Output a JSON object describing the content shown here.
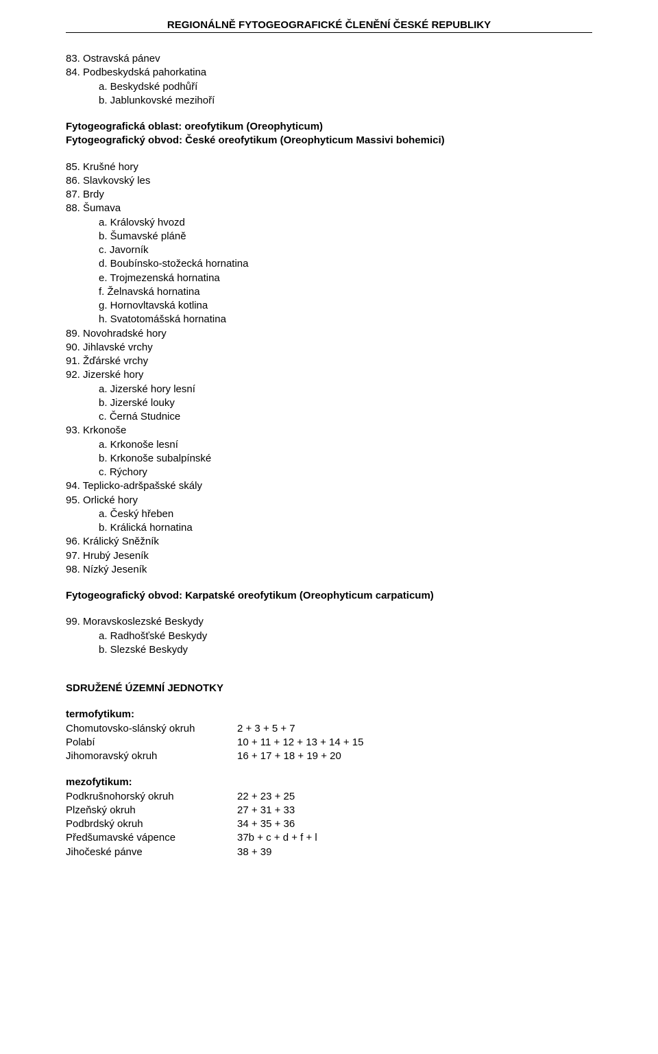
{
  "header": {
    "title": "REGIONÁLNĚ FYTOGEOGRAFICKÉ ČLENĚNÍ ČESKÉ REPUBLIKY"
  },
  "items": {
    "i83": "83. Ostravská pánev",
    "i84": "84. Podbeskydská pahorkatina",
    "i84a": "a. Beskydské podhůří",
    "i84b": "b. Jablunkovské mezihoří",
    "oblast1": "Fytogeografická oblast: oreofytikum (Oreophyticum)",
    "obvod1": "Fytogeografický obvod: České oreofytikum (Oreophyticum Massivi bohemici)",
    "i85": "85. Krušné hory",
    "i86": "86. Slavkovský les",
    "i87": "87. Brdy",
    "i88": "88. Šumava",
    "i88a": "a. Královský hvozd",
    "i88b": "b. Šumavské pláně",
    "i88c": "c. Javorník",
    "i88d": "d. Boubínsko-stožecká hornatina",
    "i88e": "e. Trojmezenská hornatina",
    "i88f": "f. Želnavská hornatina",
    "i88g": "g. Hornovltavská kotlina",
    "i88h": "h. Svatotomášská hornatina",
    "i89": "89. Novohradské hory",
    "i90": "90. Jihlavské vrchy",
    "i91": "91. Žďárské vrchy",
    "i92": "92. Jizerské hory",
    "i92a": "a. Jizerské hory lesní",
    "i92b": "b. Jizerské louky",
    "i92c": "c. Černá Studnice",
    "i93": "93. Krkonoše",
    "i93a": "a. Krkonoše lesní",
    "i93b": "b. Krkonoše subalpínské",
    "i93c": "c. Rýchory",
    "i94": "94. Teplicko-adršpašské skály",
    "i95": "95. Orlické hory",
    "i95a": "a. Český hřeben",
    "i95b": "b. Králická hornatina",
    "i96": "96. Králický Sněžník",
    "i97": "97. Hrubý Jeseník",
    "i98": "98. Nízký Jeseník",
    "obvod2": "Fytogeografický obvod: Karpatské oreofytikum (Oreophyticum carpaticum)",
    "i99": "99. Moravskoslezské Beskydy",
    "i99a": "a. Radhošťské Beskydy",
    "i99b": "b. Slezské Beskydy"
  },
  "units": {
    "heading": "SDRUŽENÉ ÚZEMNÍ JEDNOTKY",
    "termo_label": "termofytikum:",
    "termo_rows": [
      {
        "label": "Chomutovsko-slánský okruh",
        "value": "2 + 3 + 5 + 7"
      },
      {
        "label": "Polabí",
        "value": "10 + 11 + 12 + 13 + 14 + 15"
      },
      {
        "label": "Jihomoravský okruh",
        "value": "16 + 17 + 18 + 19 + 20"
      }
    ],
    "mezo_label": "mezofytikum:",
    "mezo_rows": [
      {
        "label": "Podkrušnohorský okruh",
        "value": "22 + 23 + 25"
      },
      {
        "label": "Plzeňský okruh",
        "value": "27 + 31 + 33"
      },
      {
        "label": "Podbrdský okruh",
        "value": "34 + 35 + 36"
      },
      {
        "label": "Předšumavské vápence",
        "value": "37b + c + d + f + l"
      },
      {
        "label": "Jihočeské pánve",
        "value": "38 + 39"
      }
    ]
  }
}
